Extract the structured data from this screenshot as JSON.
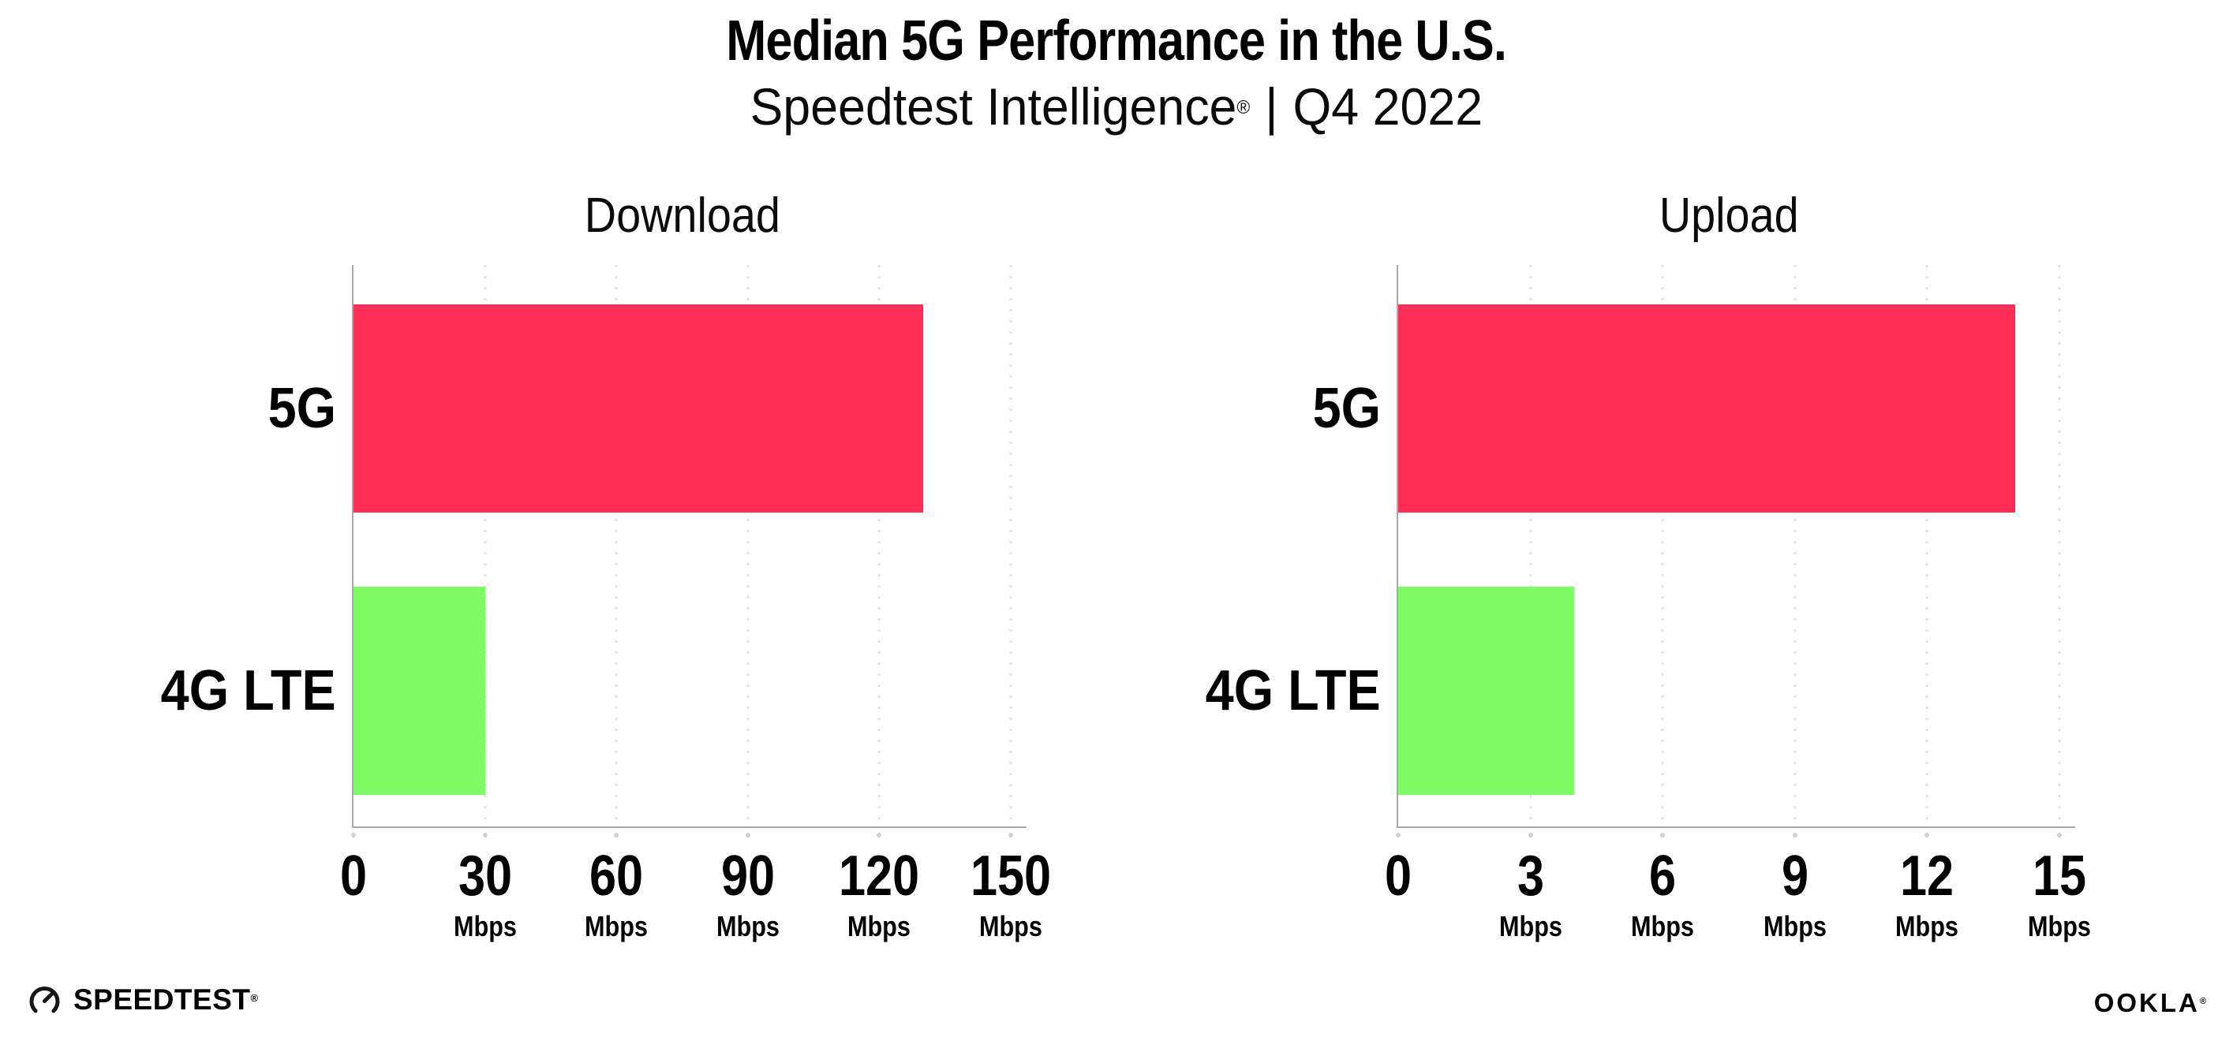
{
  "header": {
    "title": "Median 5G Performance in the U.S.",
    "subtitle": {
      "product": "Speedtest Intelligence",
      "reg_mark": "®",
      "divider": "|",
      "period": "Q4 2022"
    }
  },
  "colors": {
    "bar_5g": "#ff2e56",
    "bar_4g_lte": "#7dfc66",
    "axis": "#a8a8a8",
    "gridline": "#e3e3e3",
    "text": "#000000",
    "background": "#ffffff"
  },
  "chart_data": [
    {
      "type": "bar",
      "orientation": "horizontal",
      "title": "Download",
      "categories": [
        "5G",
        "4G LTE"
      ],
      "values": [
        130,
        30
      ],
      "unit": "Mbps",
      "xlim": [
        0,
        150
      ],
      "xticks": [
        0,
        30,
        60,
        90,
        120,
        150
      ],
      "bar_colors": [
        "#ff2e56",
        "#7dfc66"
      ],
      "grid": "vertical-dotted",
      "legend": "none"
    },
    {
      "type": "bar",
      "orientation": "horizontal",
      "title": "Upload",
      "categories": [
        "5G",
        "4G LTE"
      ],
      "values": [
        14,
        4
      ],
      "unit": "Mbps",
      "xlim": [
        0,
        15
      ],
      "xticks": [
        0,
        3,
        6,
        9,
        12,
        15
      ],
      "bar_colors": [
        "#ff2e56",
        "#7dfc66"
      ],
      "grid": "vertical-dotted",
      "legend": "none"
    }
  ],
  "footer": {
    "speedtest_label": "SPEEDTEST",
    "speedtest_reg": "®",
    "ookla_label": "OOKLA",
    "ookla_reg": "®",
    "speedtest_icon": "gauge-icon",
    "ookla_icon": "ookla-wordmark"
  }
}
